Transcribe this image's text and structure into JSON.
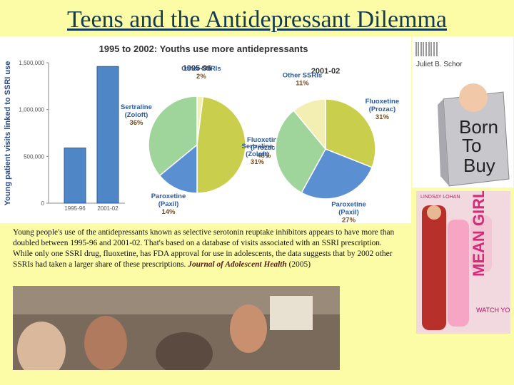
{
  "title": "Teens and the Antidepressant Dilemma",
  "chart_data": [
    {
      "type": "bar",
      "title": "1995 to 2002: Youths use more antidepressants",
      "ylabel": "Young patient visits linked to SSRI use",
      "categories": [
        "1995-96",
        "2001-02"
      ],
      "values": [
        590000,
        1460000
      ],
      "color": "#4f86c6",
      "ylim": [
        0,
        1500000
      ],
      "yticks": [
        0,
        {
          "value": 500000,
          "label": "500,000"
        },
        {
          "value": 1000000,
          "label": "1,000,000"
        },
        {
          "value": 1500000,
          "label": "1,500,000"
        }
      ]
    },
    {
      "type": "pie",
      "title": "1995-96",
      "categories": [
        "Other SSRIs",
        "Fluoxetine (Prozac)",
        "Paroxetine (Paxil)",
        "Sertraline (Zoloft)"
      ],
      "values": [
        2,
        48,
        14,
        36
      ],
      "value_labels": [
        "2%",
        "48%",
        "14%",
        "36%"
      ],
      "colors": [
        "#f3efb2",
        "#c9cf4c",
        "#5a90d2",
        "#9fd49a"
      ]
    },
    {
      "type": "pie",
      "title": "2001-02",
      "categories": [
        "Fluoxetine (Prozac)",
        "Paroxetine (Paxil)",
        "Sertraline (Zoloft)",
        "Other SSRIs"
      ],
      "values": [
        31,
        27,
        31,
        11
      ],
      "value_labels": [
        "31%",
        "27%",
        "31%",
        "11%"
      ],
      "colors": [
        "#c9cf4c",
        "#5a90d2",
        "#9fd49a",
        "#f3efb2"
      ]
    }
  ],
  "caption": {
    "text": "Young people's use of the antidepressants known as selective serotonin reuptake inhibitors appears to have more than doubled between 1995-96 and 2001-02.  That's based on a database of visits associated with an SSRI prescription.  While only one SSRI drug, fluoxetine, has FDA approval for use in adolescents, the data suggests that by 2002 other SSRIs had taken a larger share of these prescriptions.",
    "journal": "Journal of Adolescent Health",
    "year": "(2005)"
  },
  "book": {
    "author": "Juliet B. Schor",
    "words": [
      "Born",
      "To",
      "Buy"
    ]
  },
  "poster": {
    "actor": "LINDSAY LOHAN",
    "title": "MEAN GIRLS",
    "tagline": "WATCH YOUR BACK"
  }
}
